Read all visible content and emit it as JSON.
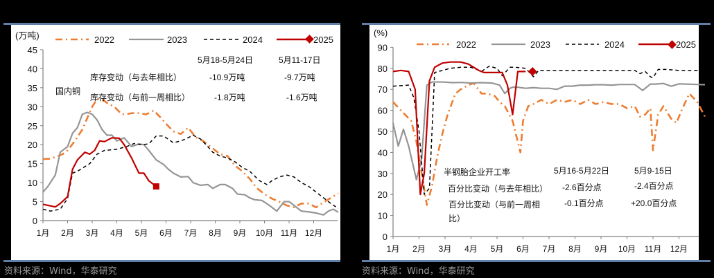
{
  "colors": {
    "y2022": "#ee7d31",
    "y2023": "#959595",
    "y2024": "#000000",
    "y2025": "#c00000",
    "rule": "#5f7fa7"
  },
  "left": {
    "unit": "(万吨)",
    "source": "资料来源：Wind，华泰研究",
    "legend": [
      "2022",
      "2023",
      "2024",
      "2025"
    ],
    "annotation": {
      "label": "国内铜",
      "col1_header": "5月18-5月24日",
      "col2_header": "5月11-17日",
      "row1_label": "库存变动（与去年相比）",
      "row1_col1": "-10.9万吨",
      "row1_col2": "-9.7万吨",
      "row2_label": "库存变动（与前一周相比）",
      "row2_col1": "-1.8万吨",
      "row2_col2": "-1.6万吨"
    }
  },
  "right": {
    "unit": "(%)",
    "source": "资料来源：Wind，华泰研究",
    "legend": [
      "2022",
      "2023",
      "2024",
      "2025"
    ],
    "annotation": {
      "label": "半钢胎企业开工率",
      "col1_header": "5月16-5月22日",
      "col2_header": "5月9-15日",
      "row1_label": "百分比变动（与去年相比）",
      "row1_col1": "-2.6百分点",
      "row1_col2": "-2.4百分点",
      "row2_label": "百分比变动（与前一周相",
      "row2_label_cont": "比）",
      "row2_col1": "-0.1百分点",
      "row2_col2": "+20.0百分点"
    }
  },
  "chart_data": [
    {
      "type": "line",
      "title": "国内铜库存",
      "ylabel": "(万吨)",
      "ylim": [
        0,
        45
      ],
      "yticks": [
        0,
        5,
        10,
        15,
        20,
        25,
        30,
        35,
        40,
        45
      ],
      "categories": [
        "1月",
        "2月",
        "3月",
        "4月",
        "5月",
        "6月",
        "7月",
        "8月",
        "9月",
        "10月",
        "11月",
        "12月"
      ],
      "legend_position": "top",
      "grid": false,
      "x_unit": "months from Jan start (0-12)",
      "series": [
        {
          "name": "2022",
          "style": "dash-dot",
          "color": "#ee7d31",
          "x": [
            0,
            0.3,
            0.8,
            1.0,
            1.3,
            1.6,
            1.8,
            2.0,
            2.2,
            2.4,
            2.6,
            2.9,
            3.2,
            3.4,
            3.6,
            3.9,
            4.2,
            4.5,
            4.8,
            5.0,
            5.3,
            5.6,
            5.9,
            6.2,
            6.5,
            6.8,
            7.2,
            7.5,
            7.8,
            8.1,
            8.4,
            8.7,
            9.0,
            9.3,
            9.6,
            9.9,
            10.2,
            10.5,
            10.8,
            11.1,
            11.4,
            11.7,
            12.0
          ],
          "y": [
            16.2,
            16.3,
            17.5,
            18.5,
            21,
            24,
            27,
            30,
            32,
            32,
            31,
            30,
            28,
            28,
            28.3,
            28.3,
            28,
            29,
            27,
            25.5,
            23.5,
            22.8,
            24.5,
            22,
            21,
            19.5,
            17.5,
            17,
            14.5,
            13,
            11,
            8.5,
            7,
            5.8,
            5.0,
            4.0,
            3.5,
            4.5,
            4.5,
            3.5,
            4.8,
            6.0,
            7.2
          ]
        },
        {
          "name": "2023",
          "style": "solid",
          "color": "#959595",
          "x": [
            0,
            0.2,
            0.5,
            0.7,
            1.0,
            1.2,
            1.4,
            1.6,
            1.8,
            2.0,
            2.2,
            2.4,
            2.6,
            2.8,
            3.0,
            3.3,
            3.6,
            3.9,
            4.1,
            4.3,
            4.6,
            4.9,
            5.1,
            5.3,
            5.6,
            5.9,
            6.1,
            6.4,
            6.7,
            6.9,
            7.2,
            7.4,
            7.7,
            7.9,
            8.2,
            8.4,
            8.6,
            8.9,
            9.2,
            9.5,
            9.8,
            10.0,
            10.3,
            10.5,
            10.8,
            11.1,
            11.4,
            11.6,
            11.8,
            12.0
          ],
          "y": [
            7.5,
            9,
            12,
            18,
            19.5,
            23,
            24.5,
            28,
            28.5,
            28,
            26.5,
            24,
            22.5,
            22.5,
            21,
            21.8,
            19.5,
            20.2,
            20,
            18.5,
            16,
            14.8,
            13.5,
            12.5,
            11.5,
            11.6,
            10,
            9.3,
            9.5,
            8.5,
            9.5,
            9.5,
            8.5,
            7,
            6.8,
            6,
            5.5,
            5.3,
            4.0,
            2.5,
            5.0,
            5.0,
            3.5,
            2.5,
            2.3,
            2.0,
            1.5,
            2.5,
            3.0,
            2.2
          ]
        },
        {
          "name": "2024",
          "style": "dashed",
          "color": "#000000",
          "x": [
            0,
            0.3,
            0.7,
            1.0,
            1.2,
            1.4,
            1.6,
            1.9,
            2.2,
            2.5,
            2.7,
            3.0,
            3.4,
            3.7,
            4.0,
            4.3,
            4.6,
            4.9,
            5.3,
            5.6,
            5.8,
            6.1,
            6.4,
            6.7,
            6.9,
            7.2,
            7.5,
            7.8,
            8.1,
            8.4,
            8.8,
            9.1,
            9.3,
            9.6,
            9.9,
            10.2,
            10.5,
            10.8,
            11.1,
            11.4,
            11.7,
            12.0
          ],
          "y": [
            3.0,
            2.5,
            3.0,
            5.8,
            12.5,
            13,
            13.8,
            15,
            17.5,
            18.5,
            18.6,
            18.8,
            19.5,
            20.3,
            20,
            20.2,
            22.3,
            22.3,
            20.5,
            21,
            21.5,
            22.5,
            21.5,
            19.5,
            18,
            17,
            16.5,
            15.5,
            14,
            13,
            10.5,
            9.5,
            10.5,
            11.5,
            12,
            11.5,
            10,
            9,
            7.5,
            6,
            4.5,
            3.2
          ]
        },
        {
          "name": "2025",
          "style": "solid",
          "color": "#c00000",
          "marker": "diamond-end",
          "x": [
            0,
            0.5,
            0.7,
            1.0,
            1.2,
            1.4,
            1.7,
            1.9,
            2.1,
            2.3,
            2.5,
            2.8,
            3.1,
            3.3,
            3.6,
            3.9,
            4.1,
            4.3,
            4.6,
            4.9,
            5.2
          ],
          "y": [
            4.3,
            3.6,
            4.5,
            6.3,
            13.5,
            16,
            18,
            17.5,
            18.5,
            21,
            20.8,
            21.8,
            21.7,
            20,
            16.5,
            12.5,
            12.5,
            10.5,
            9.0,
            null,
            null
          ]
        }
      ]
    },
    {
      "type": "line",
      "title": "半钢胎企业开工率",
      "ylabel": "(%)",
      "ylim": [
        0,
        90
      ],
      "yticks": [
        0,
        10,
        20,
        30,
        40,
        50,
        60,
        70,
        80,
        90
      ],
      "categories": [
        "1月",
        "2月",
        "3月",
        "4月",
        "5月",
        "6月",
        "7月",
        "8月",
        "9月",
        "10月",
        "11月",
        "12月"
      ],
      "legend_position": "top",
      "grid": false,
      "x_unit": "months from Jan start (0-12)",
      "series": [
        {
          "name": "2022",
          "style": "dash-dot",
          "color": "#ee7d31",
          "x": [
            0,
            0.3,
            0.7,
            0.9,
            1.1,
            1.3,
            1.5,
            1.7,
            1.9,
            2.1,
            2.4,
            2.6,
            2.9,
            3.1,
            3.4,
            3.6,
            3.9,
            4.1,
            4.3,
            4.6,
            4.9,
            5.0,
            5.2,
            5.4,
            5.7,
            6.0,
            6.3,
            6.6,
            6.9,
            7.2,
            7.5,
            7.8,
            8.1,
            8.4,
            8.7,
            9.0,
            9.3,
            9.5,
            9.7,
            9.9,
            10.0,
            10.2,
            10.4,
            10.7,
            10.9,
            11.1,
            11.4,
            11.7,
            12.0
          ],
          "y": [
            64,
            60,
            55,
            45,
            30,
            15,
            24,
            38,
            49,
            58,
            68,
            70,
            72,
            73,
            68,
            68,
            67,
            64,
            62,
            55,
            40,
            55,
            62,
            63,
            65,
            63,
            65,
            64,
            65,
            63,
            65,
            63,
            64,
            63,
            63,
            61,
            62,
            57,
            58,
            61,
            41,
            58,
            62,
            56,
            54,
            60,
            68,
            64,
            57
          ]
        },
        {
          "name": "2023",
          "style": "solid",
          "color": "#959595",
          "x": [
            0,
            0.2,
            0.4,
            0.6,
            0.9,
            1.1,
            1.3,
            1.5,
            1.7,
            1.9,
            2.3,
            2.6,
            3.0,
            3.4,
            3.8,
            4.1,
            4.3,
            4.5,
            4.6,
            4.8,
            5.1,
            5.4,
            5.7,
            6.0,
            6.3,
            6.6,
            6.9,
            7.2,
            7.5,
            7.8,
            8.1,
            8.4,
            8.7,
            9.0,
            9.3,
            9.6,
            9.9,
            10.1,
            10.4,
            10.7,
            11.0,
            11.3,
            11.7,
            12.0
          ],
          "y": [
            54,
            43,
            51,
            43,
            27,
            37,
            72,
            73.5,
            73.5,
            73.5,
            73.2,
            73.3,
            73,
            73.2,
            73,
            72,
            68,
            70.5,
            71,
            71,
            70.5,
            70.8,
            70.5,
            70.5,
            70,
            71.5,
            71.5,
            72,
            72,
            72.2,
            72.2,
            72,
            72.3,
            72.3,
            72.3,
            69.5,
            72.5,
            72.5,
            72.8,
            71.5,
            72.6,
            72.5,
            72.3,
            72.2
          ]
        },
        {
          "name": "2024",
          "style": "dashed",
          "color": "#000000",
          "x": [
            0,
            0.6,
            0.8,
            1.0,
            1.2,
            1.4,
            1.6,
            1.9,
            2.2,
            2.6,
            3.0,
            3.4,
            3.7,
            4.0,
            4.2,
            4.5,
            4.7,
            5.1,
            5.4,
            5.6,
            5.8,
            6.0,
            6.2,
            6.5,
            7.0,
            7.5,
            8.0,
            8.5,
            9.0,
            9.3,
            9.5,
            9.7,
            9.9,
            10.0,
            10.2,
            10.5,
            11.0,
            11.5,
            12.0
          ],
          "y": [
            71.5,
            72,
            66,
            50,
            20,
            23,
            78,
            79,
            80,
            80.5,
            80.5,
            78.5,
            81,
            80,
            76.5,
            80.5,
            80.5,
            80,
            76,
            79,
            79,
            79,
            79,
            79,
            79,
            79,
            79,
            79,
            79,
            79,
            77.5,
            78.5,
            76,
            75.5,
            79.5,
            79.5,
            79,
            79,
            79
          ]
        },
        {
          "name": "2025",
          "style": "solid",
          "color": "#c00000",
          "marker": "diamond-end",
          "x": [
            0,
            0.3,
            0.6,
            0.85,
            1.05,
            1.2,
            1.4,
            1.6,
            1.9,
            2.2,
            2.6,
            2.9,
            3.3,
            3.5,
            3.8,
            4.2,
            4.4,
            4.6,
            4.8,
            5.0,
            5.1
          ],
          "y": [
            78.5,
            79,
            78.5,
            70,
            20,
            30,
            74,
            80.5,
            82.5,
            83,
            83,
            82,
            79,
            78,
            78,
            78,
            72,
            58,
            78.5,
            78.5,
            78.5
          ]
        }
      ]
    }
  ]
}
